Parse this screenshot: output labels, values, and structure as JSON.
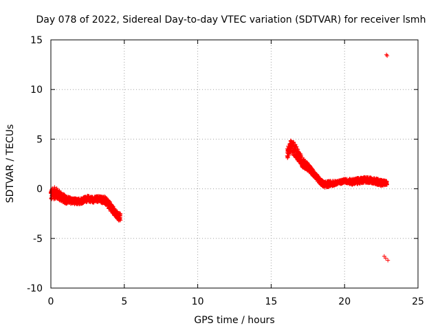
{
  "chart_data": {
    "type": "scatter",
    "title": "Day 078 of 2022, Sidereal Day-to-day VTEC variation (SDTVAR) for receiver lsmh",
    "xlabel": "GPS time / hours",
    "ylabel": "SDTVAR / TECUs",
    "xlim": [
      0,
      25
    ],
    "ylim": [
      -10,
      15
    ],
    "xticks": [
      0,
      5,
      10,
      15,
      20,
      25
    ],
    "yticks": [
      -10,
      -5,
      0,
      5,
      10,
      15
    ],
    "grid": true,
    "marker": "plus",
    "colors": {
      "series": "#ff0000",
      "axis": "#000000",
      "grid": "#a0a0a0"
    },
    "series": [
      {
        "name": "SDTVAR",
        "segments": [
          {
            "name": "early-band",
            "center": [
              [
                0.0,
                -0.6
              ],
              [
                0.3,
                -0.4
              ],
              [
                0.6,
                -0.7
              ],
              [
                1.0,
                -1.1
              ],
              [
                1.4,
                -1.2
              ],
              [
                1.8,
                -1.3
              ],
              [
                2.1,
                -1.2
              ],
              [
                2.5,
                -1.0
              ],
              [
                2.9,
                -1.1
              ],
              [
                3.3,
                -1.0
              ],
              [
                3.7,
                -1.2
              ],
              [
                4.0,
                -1.7
              ],
              [
                4.3,
                -2.3
              ],
              [
                4.6,
                -2.8
              ],
              [
                4.75,
                -2.9
              ]
            ],
            "half_width": [
              0.6,
              0.6,
              0.5,
              0.4,
              0.3,
              0.3,
              0.3,
              0.3,
              0.3,
              0.3,
              0.4,
              0.4,
              0.4,
              0.4,
              0.4
            ]
          },
          {
            "name": "late-band-rise",
            "center": [
              [
                16.1,
                3.5
              ],
              [
                16.3,
                4.3
              ],
              [
                16.5,
                4.1
              ],
              [
                16.8,
                3.5
              ],
              [
                17.1,
                2.7
              ],
              [
                17.5,
                2.2
              ],
              [
                17.9,
                1.5
              ],
              [
                18.3,
                0.8
              ],
              [
                18.6,
                0.4
              ]
            ],
            "half_width": [
              0.6,
              0.6,
              0.7,
              0.6,
              0.5,
              0.4,
              0.3,
              0.3,
              0.3
            ]
          },
          {
            "name": "late-band-flat",
            "center": [
              [
                18.6,
                0.4
              ],
              [
                19.0,
                0.5
              ],
              [
                19.5,
                0.6
              ],
              [
                20.0,
                0.8
              ],
              [
                20.5,
                0.7
              ],
              [
                21.0,
                0.8
              ],
              [
                21.5,
                0.9
              ],
              [
                22.0,
                0.8
              ],
              [
                22.5,
                0.6
              ],
              [
                22.9,
                0.6
              ]
            ],
            "half_width": [
              0.3,
              0.3,
              0.2,
              0.2,
              0.3,
              0.3,
              0.3,
              0.3,
              0.3,
              0.2
            ]
          }
        ],
        "outliers": [
          [
            22.85,
            13.5
          ],
          [
            22.9,
            13.4
          ],
          [
            22.7,
            -6.8
          ],
          [
            22.8,
            -7.0
          ],
          [
            22.95,
            -7.2
          ]
        ]
      }
    ]
  }
}
